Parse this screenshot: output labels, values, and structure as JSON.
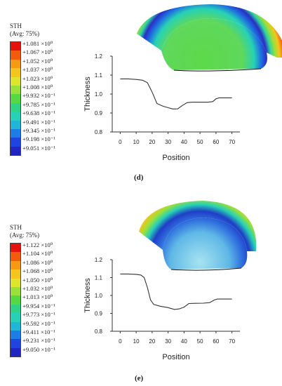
{
  "legend_colors": [
    "#e4120d",
    "#f25a0c",
    "#f59a12",
    "#f4c51d",
    "#dfe52c",
    "#9ae03a",
    "#55d843",
    "#2fd385",
    "#27d1b6",
    "#21b6d6",
    "#1c7ee4",
    "#1f44e0",
    "#2226c0"
  ],
  "panels": [
    {
      "caption": "(d)",
      "legend": {
        "title": "STH",
        "subtitle": "(Avg: 75%)",
        "labels": [
          "+1.081 ×10⁰",
          "+1.067 ×10⁰",
          "+1.052 ×10⁰",
          "+1.037 ×10⁰",
          "+1.023 ×10⁰",
          "+1.008 ×10⁰",
          "+9.932 ×10⁻¹",
          "+9.785 ×10⁻¹",
          "+9.638 ×10⁻¹",
          "+9.491 ×10⁻¹",
          "+9.345 ×10⁻¹",
          "+9.198 ×10⁻¹",
          "+9.051 ×10⁻¹"
        ]
      }
    },
    {
      "caption": "(e)",
      "legend": {
        "title": "STH",
        "subtitle": "(Avg: 75%)",
        "labels": [
          "+1.122 ×10⁰",
          "+1.104 ×10⁰",
          "+1.086 ×10⁰",
          "+1.068 ×10⁰",
          "+1.050 ×10⁰",
          "+1.032 ×10⁰",
          "+1.013 ×10⁰",
          "+9.954 ×10⁻¹",
          "+9.773 ×10⁻¹",
          "+9.592 ×10⁻¹",
          "+9.411 ×10⁻¹",
          "+9.231 ×10⁻¹",
          "+9.050 ×10⁻¹"
        ]
      }
    }
  ],
  "chart_data": [
    {
      "type": "line",
      "xlabel": "Position",
      "ylabel": "Thickness",
      "xlim": [
        -5,
        75
      ],
      "ylim": [
        0.8,
        1.2
      ],
      "xticks": [
        "0",
        "10",
        "20",
        "30",
        "40",
        "50",
        "60",
        "70"
      ],
      "yticks": [
        "0.8",
        "0.9",
        "1.0",
        "1.1",
        "1.2"
      ],
      "grid": false,
      "series": [
        {
          "x": [
            0,
            5,
            10,
            14,
            17,
            20,
            23,
            27,
            30,
            33,
            36,
            39,
            42,
            45,
            50,
            55,
            58,
            60,
            62,
            66,
            70
          ],
          "y": [
            1.08,
            1.08,
            1.077,
            1.073,
            1.06,
            1.01,
            0.95,
            0.935,
            0.928,
            0.921,
            0.922,
            0.94,
            0.955,
            0.957,
            0.957,
            0.957,
            0.96,
            0.975,
            0.98,
            0.98,
            0.98
          ]
        }
      ]
    },
    {
      "type": "line",
      "xlabel": "Position",
      "ylabel": "Thickness",
      "xlim": [
        -5,
        75
      ],
      "ylim": [
        0.8,
        1.2
      ],
      "xticks": [
        "0",
        "10",
        "20",
        "30",
        "40",
        "50",
        "60",
        "70"
      ],
      "yticks": [
        "0.8",
        "0.9",
        "1.0",
        "1.1",
        "1.2"
      ],
      "grid": false,
      "series": [
        {
          "x": [
            0,
            5,
            10,
            13,
            15,
            17,
            19,
            21,
            25,
            30,
            34,
            37,
            40,
            43,
            47,
            52,
            56,
            59,
            61,
            65,
            70
          ],
          "y": [
            1.12,
            1.12,
            1.118,
            1.114,
            1.1,
            1.045,
            0.975,
            0.95,
            0.94,
            0.932,
            0.922,
            0.925,
            0.935,
            0.955,
            0.956,
            0.957,
            0.96,
            0.975,
            0.98,
            0.98,
            0.98
          ]
        }
      ]
    }
  ]
}
